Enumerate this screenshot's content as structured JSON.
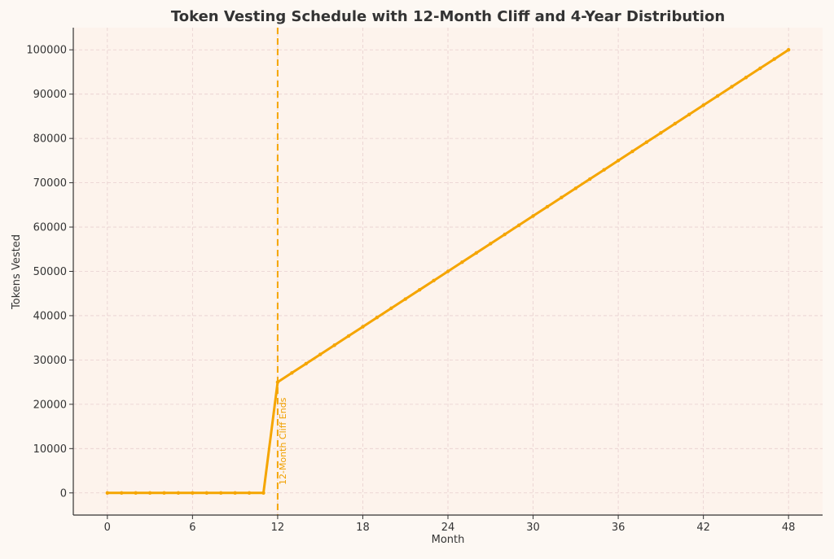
{
  "chart_data": {
    "type": "line",
    "title": "Token Vesting Schedule with 12-Month Cliff and 4-Year Distribution",
    "xlabel": "Month",
    "ylabel": "Tokens Vested",
    "xlim": [
      -2.4,
      50.4
    ],
    "ylim": [
      -5000,
      105000
    ],
    "xticks": [
      0,
      6,
      12,
      18,
      24,
      30,
      36,
      42,
      48
    ],
    "yticks": [
      0,
      10000,
      20000,
      30000,
      40000,
      50000,
      60000,
      70000,
      80000,
      90000,
      100000
    ],
    "grid": true,
    "series": [
      {
        "color": "#f5a500",
        "x": [
          0,
          1,
          2,
          3,
          4,
          5,
          6,
          7,
          8,
          9,
          10,
          11,
          12,
          13,
          14,
          15,
          16,
          17,
          18,
          19,
          20,
          21,
          22,
          23,
          24,
          25,
          26,
          27,
          28,
          29,
          30,
          31,
          32,
          33,
          34,
          35,
          36,
          37,
          38,
          39,
          40,
          41,
          42,
          43,
          44,
          45,
          46,
          47,
          48
        ],
        "y": [
          0,
          0,
          0,
          0,
          0,
          0,
          0,
          0,
          0,
          0,
          0,
          0,
          25000,
          27083,
          29167,
          31250,
          33333,
          35417,
          37500,
          39583,
          41667,
          43750,
          45833,
          47917,
          50000,
          52083,
          54167,
          56250,
          58333,
          60417,
          62500,
          64583,
          66667,
          68750,
          70833,
          72917,
          75000,
          77083,
          79167,
          81250,
          83333,
          85417,
          87500,
          89583,
          91667,
          93750,
          95833,
          97917,
          100000
        ]
      }
    ],
    "annotations": [
      {
        "type": "vline",
        "x": 12,
        "label": "12-Month Cliff Ends",
        "color": "#f5a500",
        "style": "dashed"
      }
    ]
  },
  "colors": {
    "background": "#fdf8f3",
    "plot_background": "#fdf3ec",
    "grid": "#e8cfcf",
    "axis": "#333333",
    "line": "#f5a500"
  }
}
